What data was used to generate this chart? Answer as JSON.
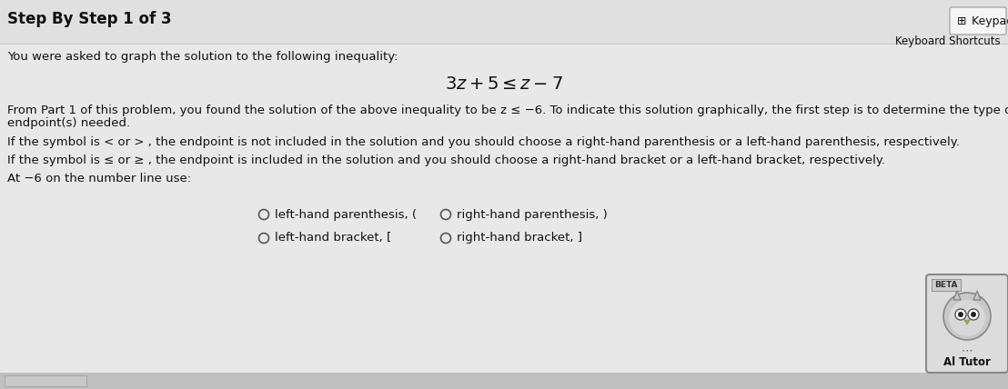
{
  "bg_color": "#d4d4d4",
  "white_area_color": "#e8e8e8",
  "title_text": "Step By Step 1 of 3",
  "keypad_text": " Keypad",
  "keyboard_shortcuts_text": "Keyboard Shortcuts",
  "intro_text": "You were asked to graph the solution to the following inequality:",
  "inequality_text": "$3z + 5 \\leq z - 7$",
  "body_line1a": "From Part 1 of this problem, you found the solution of the above inequality to be z ≤ −6. To indicate this solution graphically, the first step is to determine the type of",
  "body_line1b": "endpoint(s) needed.",
  "body_line2": "If the symbol is < or > , the endpoint is not included in the solution and you should choose a right-hand parenthesis or a left-hand parenthesis, respectively.",
  "body_line3": "If the symbol is ≤ or ≥ , the endpoint is included in the solution and you should choose a right-hand bracket or a left-hand bracket, respectively.",
  "body_line4": "At −6 on the number line use:",
  "option1": "left-hand parenthesis, (",
  "option2": "right-hand parenthesis, )",
  "option3": "left-hand bracket, [",
  "option4": "right-hand bracket, ]",
  "beta_text": "BETA",
  "ai_tutor_text": "Al Tutor",
  "text_color": "#111111",
  "title_fontsize": 12,
  "body_fontsize": 9.5,
  "inequality_fontsize": 14,
  "keypad_box_color": "#f5f5f5",
  "keypad_border_color": "#aaaaaa",
  "bottom_bar_color": "#c0c0c0",
  "divider_color": "#bbbbbb"
}
